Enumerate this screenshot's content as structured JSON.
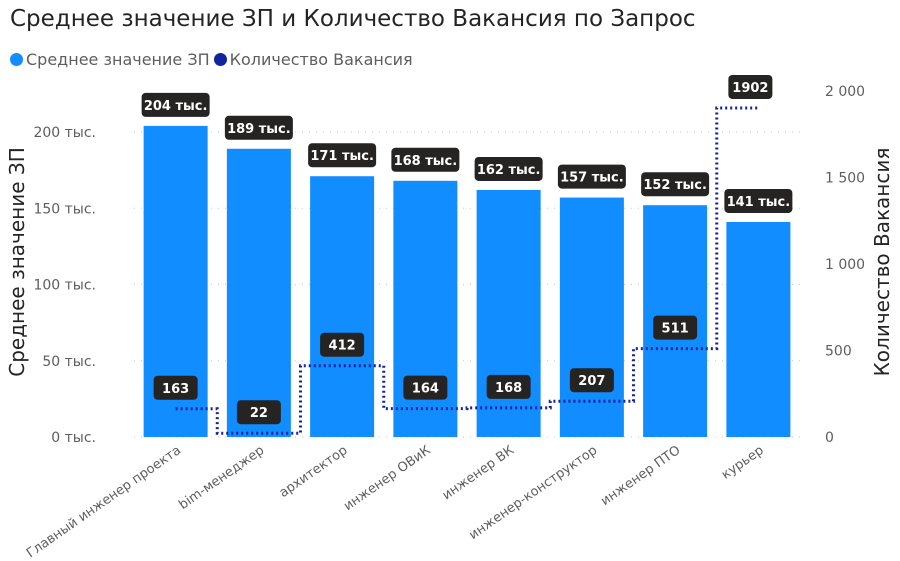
{
  "title": "Среднее значение ЗП и Количество Вакансия по Запрос",
  "legend": [
    {
      "label": "Среднее значение ЗП",
      "color": "#118dff"
    },
    {
      "label": "Количество Вакансия",
      "color": "#12239e"
    }
  ],
  "chart_data": {
    "type": "bar",
    "categories": [
      "Главный инженер проекта",
      "bim-менеджер",
      "архитектор",
      "инженер ОВиК",
      "инженер ВК",
      "инженер-конструктор",
      "инженер ПТО",
      "курьер"
    ],
    "series": [
      {
        "name": "Среднее значение ЗП",
        "type": "bar",
        "axis": "left",
        "color": "#118dff",
        "values": [
          204000,
          189000,
          171000,
          168000,
          162000,
          157000,
          152000,
          141000
        ],
        "labels": [
          "204 тыс.",
          "189 тыс.",
          "171 тыс.",
          "168 тыс.",
          "162 тыс.",
          "157 тыс.",
          "152 тыс.",
          "141 тыс."
        ]
      },
      {
        "name": "Количество Вакансия",
        "type": "line-step",
        "axis": "right",
        "color": "#12239e",
        "values": [
          163,
          22,
          412,
          164,
          168,
          207,
          511,
          1902
        ],
        "labels": [
          "163",
          "22",
          "412",
          "164",
          "168",
          "207",
          "511",
          "1902"
        ]
      }
    ],
    "y_left": {
      "label": "Среднее значение ЗП",
      "ticks": [
        0,
        50000,
        100000,
        150000,
        200000
      ],
      "tick_labels": [
        "0 тыс.",
        "50 тыс.",
        "100 тыс.",
        "150 тыс.",
        "200 тыс."
      ]
    },
    "y_right": {
      "label": "Количество Вакансия",
      "ticks": [
        0,
        500,
        1000,
        1500,
        2000
      ],
      "tick_labels": [
        "0",
        "500",
        "1 000",
        "1 500",
        "2 000"
      ]
    },
    "grid": true,
    "legend_position": "top-left"
  }
}
